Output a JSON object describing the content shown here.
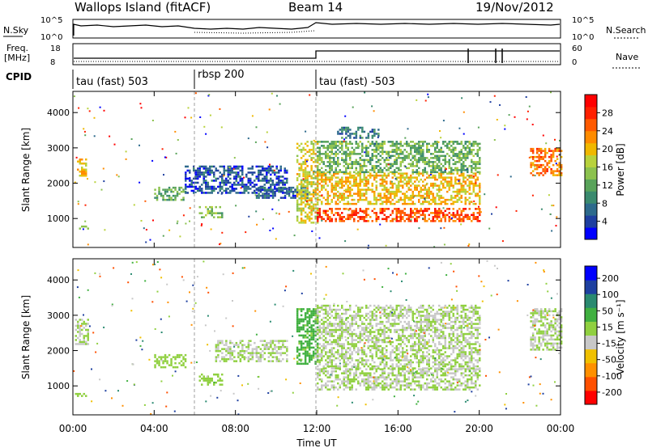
{
  "header": {
    "station": "Wallops Island (fitACF)",
    "beam": "Beam 14",
    "date": "19/Nov/2012"
  },
  "status_panels": {
    "nsky_label": "N.Sky",
    "nsky_ticks": [
      "10^5",
      "10^0"
    ],
    "nsearch_label": "N.Search",
    "nsearch_ticks": [
      "10^5",
      "10^0"
    ],
    "freq_label": "Freq.",
    "freq_unit": "[MHz]",
    "freq_ticks": [
      "18",
      "8"
    ],
    "nave_label": "Nave",
    "nave_ticks": [
      "60",
      "0"
    ],
    "cpid_label": "CPID",
    "cpid_segments": [
      {
        "label": "tau (fast) 503",
        "start_hour": 0
      },
      {
        "label": "rbsp 200",
        "start_hour": 6
      },
      {
        "label": "tau (fast) -503",
        "start_hour": 12
      }
    ]
  },
  "chart_data": [
    {
      "type": "heatmap",
      "name": "power",
      "ylabel": "Slant Range [km]",
      "ylim": [
        180,
        4600
      ],
      "yticks": [
        "4000",
        "3000",
        "2000",
        "1000"
      ],
      "xlim_hours": [
        0,
        24
      ],
      "colorbar": {
        "label": "Power [dB]",
        "range": [
          0,
          32
        ],
        "ticks": [
          "28",
          "24",
          "20",
          "16",
          "12",
          "8",
          "4"
        ],
        "colors": [
          "#0000ff",
          "#1e3fa0",
          "#2d6a8c",
          "#3a8a6e",
          "#59a35a",
          "#8cc24e",
          "#b8d23c",
          "#f0b800",
          "#ff8c00",
          "#ff5a00",
          "#ff2000",
          "#ff0000"
        ]
      },
      "regions": [
        {
          "t": [
            0.2,
            0.6
          ],
          "r": [
            2200,
            2700
          ],
          "v": 20
        },
        {
          "t": [
            0.2,
            0.7
          ],
          "r": [
            700,
            800
          ],
          "v": 14
        },
        {
          "t": [
            4.0,
            5.5
          ],
          "r": [
            1500,
            1900
          ],
          "v": 12
        },
        {
          "t": [
            5.5,
            10.5
          ],
          "r": [
            1700,
            2500
          ],
          "v": 5
        },
        {
          "t": [
            6.2,
            7.3
          ],
          "r": [
            1050,
            1350
          ],
          "v": 14
        },
        {
          "t": [
            9.0,
            11.5
          ],
          "r": [
            1600,
            1900
          ],
          "v": 6
        },
        {
          "t": [
            11.0,
            12.0
          ],
          "r": [
            900,
            3200
          ],
          "v": 18
        },
        {
          "t": [
            12.0,
            20.0
          ],
          "r": [
            950,
            1300
          ],
          "v": 26
        },
        {
          "t": [
            12.0,
            20.0
          ],
          "r": [
            1400,
            2300
          ],
          "v": 20
        },
        {
          "t": [
            12.0,
            20.0
          ],
          "r": [
            2300,
            3200
          ],
          "v": 13
        },
        {
          "t": [
            13.0,
            15.0
          ],
          "r": [
            3300,
            3600
          ],
          "v": 8
        },
        {
          "t": [
            22.5,
            24.0
          ],
          "r": [
            2200,
            3000
          ],
          "v": 24
        }
      ]
    },
    {
      "type": "heatmap",
      "name": "velocity",
      "ylabel": "Slant Range [km]",
      "ylim": [
        180,
        4600
      ],
      "yticks": [
        "4000",
        "3000",
        "2000",
        "1000"
      ],
      "xlabel": "Time UT",
      "xticks": [
        "00:00",
        "04:00",
        "08:00",
        "12:00",
        "16:00",
        "20:00",
        "00:00"
      ],
      "xlim_hours": [
        0,
        24
      ],
      "colorbar": {
        "label": "Velocity [m s⁻¹]",
        "range": [
          -250,
          250
        ],
        "ticks": [
          "200",
          "100",
          "50",
          "15",
          "-15",
          "-50",
          "-100",
          "-200"
        ],
        "colors": [
          "#ff0000",
          "#ff5000",
          "#ff9000",
          "#f0c000",
          "#c8c8c8",
          "#90d040",
          "#40b040",
          "#2a8a70",
          "#1e40a0",
          "#0000ff"
        ]
      },
      "regions": [
        {
          "t": [
            0.1,
            0.7
          ],
          "r": [
            2200,
            2900
          ],
          "v": 0
        },
        {
          "t": [
            0.1,
            0.6
          ],
          "r": [
            700,
            800
          ],
          "v": 40
        },
        {
          "t": [
            4.0,
            5.5
          ],
          "r": [
            1500,
            1900
          ],
          "v": 30
        },
        {
          "t": [
            6.2,
            7.3
          ],
          "r": [
            1050,
            1350
          ],
          "v": 30
        },
        {
          "t": [
            7.0,
            10.5
          ],
          "r": [
            1700,
            2300
          ],
          "v": 0
        },
        {
          "t": [
            11.0,
            12.0
          ],
          "r": [
            1600,
            3200
          ],
          "v": 60
        },
        {
          "t": [
            12.0,
            20.0
          ],
          "r": [
            900,
            1500
          ],
          "v": 0
        },
        {
          "t": [
            12.0,
            20.0
          ],
          "r": [
            1500,
            3300
          ],
          "v": 0
        },
        {
          "t": [
            22.5,
            24.0
          ],
          "r": [
            2000,
            3200
          ],
          "v": 0
        }
      ]
    }
  ]
}
